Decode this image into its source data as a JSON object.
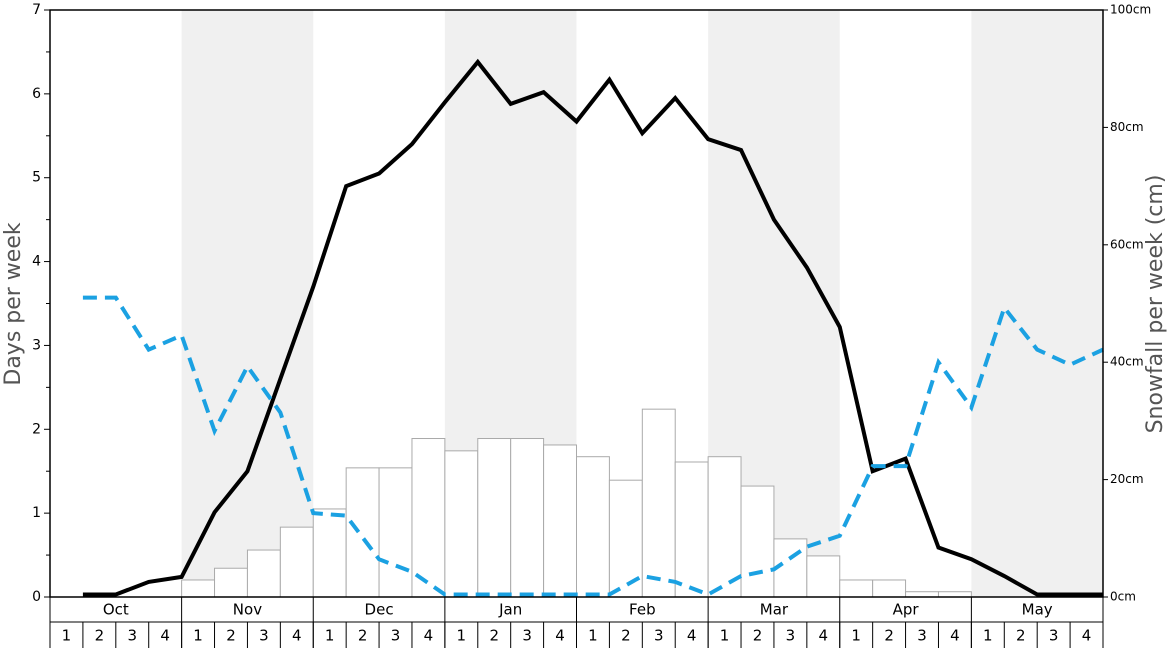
{
  "chart_data": {
    "type": "bar",
    "y_label": "Days per week",
    "y2_label": "Snowfall per week (cm)",
    "months": [
      "Oct",
      "Nov",
      "Dec",
      "Jan",
      "Feb",
      "Mar",
      "Apr",
      "May"
    ],
    "categories": [
      "1",
      "2",
      "3",
      "4",
      "1",
      "2",
      "3",
      "4",
      "1",
      "2",
      "3",
      "4",
      "1",
      "2",
      "3",
      "4",
      "1",
      "2",
      "3",
      "4",
      "1",
      "2",
      "3",
      "4",
      "1",
      "2",
      "3",
      "4",
      "1",
      "2",
      "3",
      "4"
    ],
    "ylim": [
      0,
      7
    ],
    "yticks": [
      0,
      1,
      2,
      3,
      4,
      5,
      6,
      7
    ],
    "yminorticks": [
      0.5,
      1.5,
      2.5,
      3.5,
      4.5,
      5.5,
      6.5
    ],
    "y2lim": [
      0,
      100
    ],
    "y2ticks": [
      {
        "value": 0,
        "label": "0cm"
      },
      {
        "value": 20,
        "label": "20cm"
      },
      {
        "value": 40,
        "label": "40cm"
      },
      {
        "value": 60,
        "label": "60cm"
      },
      {
        "value": 80,
        "label": "80cm"
      },
      {
        "value": 100,
        "label": "100cm"
      }
    ],
    "series": [
      {
        "type": "bar",
        "axis": "y2",
        "color": "#ffffff",
        "values": [
          0,
          0,
          0,
          0,
          2.9,
          4.9,
          8,
          11.9,
          15,
          22,
          22,
          27,
          24.9,
          27,
          27,
          25.9,
          23.9,
          19.9,
          32,
          23,
          23.9,
          18.9,
          9.9,
          7,
          2.9,
          2.9,
          0.9,
          0.9,
          0,
          0,
          0,
          0
        ]
      },
      {
        "type": "line",
        "color": "#000000",
        "dashed": false,
        "values": [
          0.03,
          0.03,
          0.18,
          0.24,
          1.01,
          1.5,
          2.6,
          3.7,
          4.9,
          5.05,
          5.4,
          5.9,
          6.38,
          5.88,
          6.02,
          5.67,
          6.17,
          5.53,
          5.95,
          5.46,
          5.33,
          4.5,
          3.93,
          3.22,
          1.5,
          1.65,
          0.59,
          0.45,
          0.25,
          0.03,
          0.03,
          0.03
        ]
      },
      {
        "type": "line",
        "color": "#1ba1e2",
        "dashed": true,
        "values": [
          3.57,
          3.57,
          2.95,
          3.12,
          1.98,
          2.75,
          2.2,
          1.0,
          0.97,
          0.45,
          0.3,
          0.03,
          0.03,
          0.03,
          0.03,
          0.03,
          0.03,
          0.25,
          0.18,
          0.03,
          0.25,
          0.33,
          0.6,
          0.73,
          1.56,
          1.56,
          2.8,
          2.26,
          3.45,
          2.95,
          2.77,
          2.95
        ]
      }
    ]
  }
}
